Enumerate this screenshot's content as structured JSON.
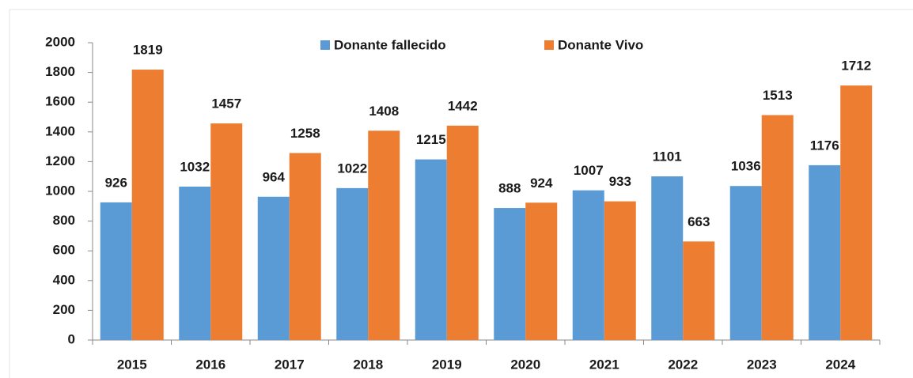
{
  "chart_data": {
    "type": "bar",
    "categories": [
      "2015",
      "2016",
      "2017",
      "2018",
      "2019",
      "2020",
      "2021",
      "2022",
      "2023",
      "2024"
    ],
    "series": [
      {
        "name": "Donante fallecido",
        "color": "#5b9bd5",
        "values": [
          926,
          1032,
          964,
          1022,
          1215,
          888,
          1007,
          1101,
          1036,
          1176
        ]
      },
      {
        "name": "Donante Vivo",
        "color": "#ed7d31",
        "values": [
          1819,
          1457,
          1258,
          1408,
          1442,
          924,
          933,
          663,
          1513,
          1712
        ]
      }
    ],
    "ylim": [
      0,
      2000
    ],
    "yticks": [
      0,
      200,
      400,
      600,
      800,
      1000,
      1200,
      1400,
      1600,
      1800,
      2000
    ],
    "grid": false,
    "legend": "top"
  }
}
